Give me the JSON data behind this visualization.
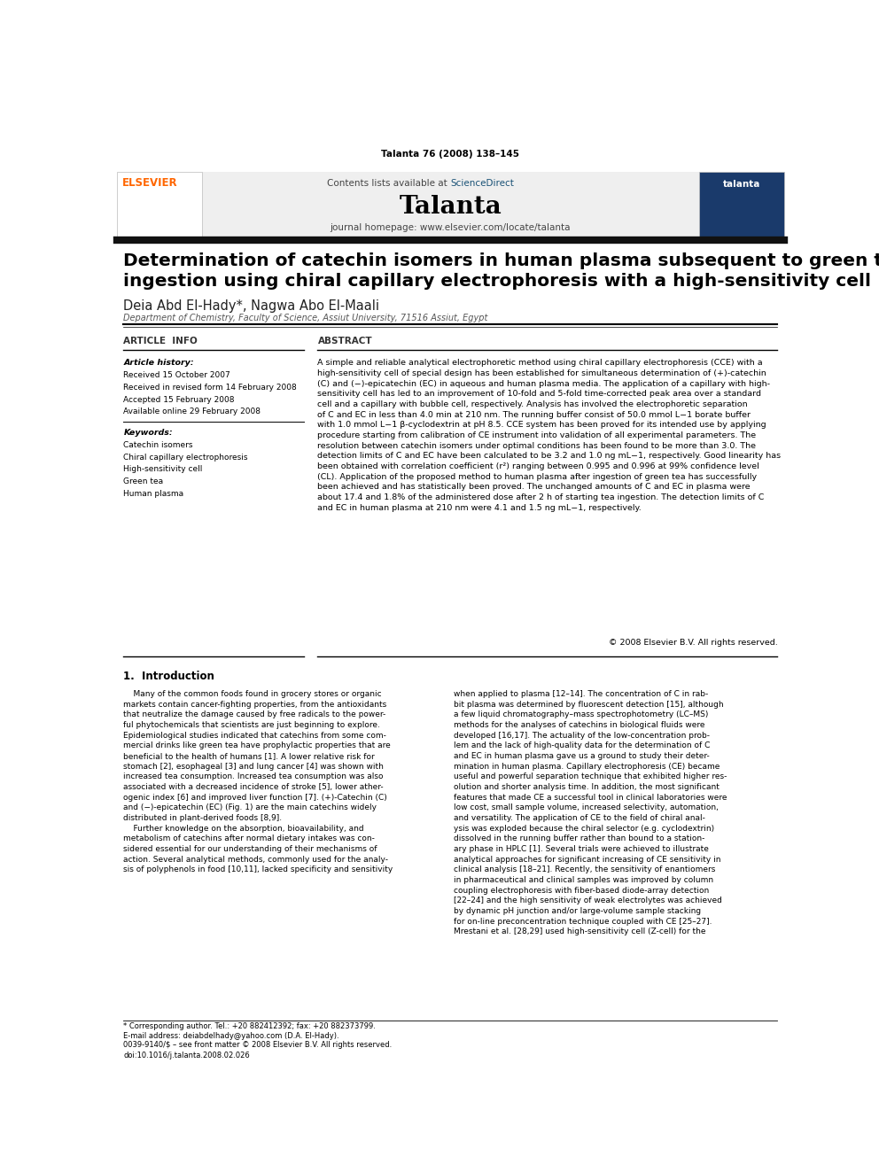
{
  "page_width": 9.92,
  "page_height": 13.23,
  "bg_color": "#ffffff",
  "top_journal_ref": "Talanta 76 (2008) 138–145",
  "header_bg": "#efefef",
  "header_contents_text": "Contents lists available at ",
  "header_sciencedirect": "ScienceDirect",
  "header_journal_name": "Talanta",
  "header_homepage": "journal homepage: www.elsevier.com/locate/talanta",
  "title_bar_color": "#1a1a1a",
  "paper_title": "Determination of catechin isomers in human plasma subsequent to green tea\ningestion using chiral capillary electrophoresis with a high-sensitivity cell",
  "authors": "Deia Abd El-Hady*, Nagwa Abo El-Maali",
  "affiliation": "Department of Chemistry, Faculty of Science, Assiut University, 71516 Assiut, Egypt",
  "article_info_header": "ARTICLE  INFO",
  "abstract_header": "ABSTRACT",
  "article_history_label": "Article history:",
  "article_history": [
    "Received 15 October 2007",
    "Received in revised form 14 February 2008",
    "Accepted 15 February 2008",
    "Available online 29 February 2008"
  ],
  "keywords_label": "Keywords:",
  "keywords": [
    "Catechin isomers",
    "Chiral capillary electrophoresis",
    "High-sensitivity cell",
    "Green tea",
    "Human plasma"
  ],
  "abstract_text": "A simple and reliable analytical electrophoretic method using chiral capillary electrophoresis (CCE) with a\nhigh-sensitivity cell of special design has been established for simultaneous determination of (+)-catechin\n(C) and (−)-epicatechin (EC) in aqueous and human plasma media. The application of a capillary with high-\nsensitivity cell has led to an improvement of 10-fold and 5-fold time-corrected peak area over a standard\ncell and a capillary with bubble cell, respectively. Analysis has involved the electrophoretic separation\nof C and EC in less than 4.0 min at 210 nm. The running buffer consist of 50.0 mmol L−1 borate buffer\nwith 1.0 mmol L−1 β-cyclodextrin at pH 8.5. CCE system has been proved for its intended use by applying\nprocedure starting from calibration of CE instrument into validation of all experimental parameters. The\nresolution between catechin isomers under optimal conditions has been found to be more than 3.0. The\ndetection limits of C and EC have been calculated to be 3.2 and 1.0 ng mL−1, respectively. Good linearity has\nbeen obtained with correlation coefficient (r²) ranging between 0.995 and 0.996 at 99% confidence level\n(CL). Application of the proposed method to human plasma after ingestion of green tea has successfully\nbeen achieved and has statistically been proved. The unchanged amounts of C and EC in plasma were\nabout 17.4 and 1.8% of the administered dose after 2 h of starting tea ingestion. The detection limits of C\nand EC in human plasma at 210 nm were 4.1 and 1.5 ng mL−1, respectively.",
  "copyright": "© 2008 Elsevier B.V. All rights reserved.",
  "intro_header": "1.  Introduction",
  "intro_col1": "    Many of the common foods found in grocery stores or organic\nmarkets contain cancer-fighting properties, from the antioxidants\nthat neutralize the damage caused by free radicals to the power-\nful phytochemicals that scientists are just beginning to explore.\nEpidemiological studies indicated that catechins from some com-\nmercial drinks like green tea have prophylactic properties that are\nbeneficial to the health of humans [1]. A lower relative risk for\nstomach [2], esophageal [3] and lung cancer [4] was shown with\nincreased tea consumption. Increased tea consumption was also\nassociated with a decreased incidence of stroke [5], lower ather-\nogenic index [6] and improved liver function [7]. (+)-Catechin (C)\nand (−)-epicatechin (EC) (Fig. 1) are the main catechins widely\ndistributed in plant-derived foods [8,9].\n    Further knowledge on the absorption, bioavailability, and\nmetabolism of catechins after normal dietary intakes was con-\nsidered essential for our understanding of their mechanisms of\naction. Several analytical methods, commonly used for the analy-\nsis of polyphenols in food [10,11], lacked specificity and sensitivity",
  "intro_col2": "when applied to plasma [12–14]. The concentration of C in rab-\nbit plasma was determined by fluorescent detection [15], although\na few liquid chromatography–mass spectrophotometry (LC–MS)\nmethods for the analyses of catechins in biological fluids were\ndeveloped [16,17]. The actuality of the low-concentration prob-\nlem and the lack of high-quality data for the determination of C\nand EC in human plasma gave us a ground to study their deter-\nmination in human plasma. Capillary electrophoresis (CE) became\nuseful and powerful separation technique that exhibited higher res-\nolution and shorter analysis time. In addition, the most significant\nfeatures that made CE a successful tool in clinical laboratories were\nlow cost, small sample volume, increased selectivity, automation,\nand versatility. The application of CE to the field of chiral anal-\nysis was exploded because the chiral selector (e.g. cyclodextrin)\ndissolved in the running buffer rather than bound to a station-\nary phase in HPLC [1]. Several trials were achieved to illustrate\nanalytical approaches for significant increasing of CE sensitivity in\nclinical analysis [18–21]. Recently, the sensitivity of enantiomers\nin pharmaceutical and clinical samples was improved by column\ncoupling electrophoresis with fiber-based diode-array detection\n[22–24] and the high sensitivity of weak electrolytes was achieved\nby dynamic pH junction and/or large-volume sample stacking\nfor on-line preconcentration technique coupled with CE [25–27].\nMrestani et al. [28,29] used high-sensitivity cell (Z-cell) for the",
  "footer_text": "0039-9140/$ – see front matter © 2008 Elsevier B.V. All rights reserved.\ndoi:10.1016/j.talanta.2008.02.026",
  "footnote_text": "* Corresponding author. Tel.: +20 882412392; fax: +20 882373799.\nE-mail address: deiabdelhady@yahoo.com (D.A. El-Hady)."
}
